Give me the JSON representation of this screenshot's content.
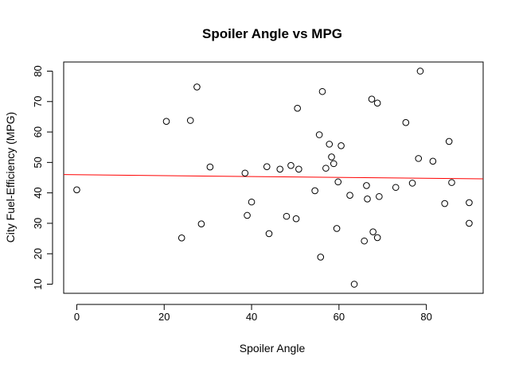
{
  "chart_data": {
    "type": "scatter",
    "title": "Spoiler Angle vs MPG",
    "xlabel": "Spoiler Angle",
    "ylabel": "City Fuel-Efficiency (MPG)",
    "xlim": [
      -3,
      93
    ],
    "ylim": [
      7,
      83
    ],
    "x_ticks": [
      0,
      20,
      40,
      60,
      80
    ],
    "y_ticks": [
      10,
      20,
      30,
      40,
      50,
      60,
      70,
      80
    ],
    "grid": false,
    "legend": "none",
    "point_color": "#000000",
    "line_color": "#ff0000",
    "fit_line": {
      "x": [
        -3,
        93
      ],
      "y": [
        46.0,
        44.6
      ]
    },
    "points": [
      {
        "x": 0,
        "y": 41
      },
      {
        "x": 20.5,
        "y": 63.5
      },
      {
        "x": 24,
        "y": 25.2
      },
      {
        "x": 26,
        "y": 63.8
      },
      {
        "x": 27.5,
        "y": 74.8
      },
      {
        "x": 28.5,
        "y": 29.8
      },
      {
        "x": 30.5,
        "y": 48.5
      },
      {
        "x": 38.5,
        "y": 46.5
      },
      {
        "x": 39,
        "y": 32.6
      },
      {
        "x": 40,
        "y": 37
      },
      {
        "x": 43.5,
        "y": 48.6
      },
      {
        "x": 44,
        "y": 26.6
      },
      {
        "x": 46.5,
        "y": 47.8
      },
      {
        "x": 48,
        "y": 32.3
      },
      {
        "x": 49,
        "y": 49
      },
      {
        "x": 50.2,
        "y": 31.5
      },
      {
        "x": 50.5,
        "y": 67.8
      },
      {
        "x": 50.8,
        "y": 47.8
      },
      {
        "x": 54.5,
        "y": 40.7
      },
      {
        "x": 55.5,
        "y": 59.1
      },
      {
        "x": 55.8,
        "y": 18.9
      },
      {
        "x": 56.2,
        "y": 73.3
      },
      {
        "x": 57,
        "y": 48.1
      },
      {
        "x": 57.8,
        "y": 56
      },
      {
        "x": 58.3,
        "y": 51.8
      },
      {
        "x": 58.8,
        "y": 49.6
      },
      {
        "x": 59.5,
        "y": 28.3
      },
      {
        "x": 59.8,
        "y": 43.6
      },
      {
        "x": 60.5,
        "y": 55.5
      },
      {
        "x": 62.5,
        "y": 39.2
      },
      {
        "x": 63.5,
        "y": 10
      },
      {
        "x": 65.8,
        "y": 24.2
      },
      {
        "x": 66.3,
        "y": 42.4
      },
      {
        "x": 66.5,
        "y": 38
      },
      {
        "x": 67.5,
        "y": 70.8
      },
      {
        "x": 67.8,
        "y": 27.2
      },
      {
        "x": 68.8,
        "y": 69.5
      },
      {
        "x": 68.8,
        "y": 25.3
      },
      {
        "x": 69.2,
        "y": 38.8
      },
      {
        "x": 73,
        "y": 41.8
      },
      {
        "x": 75.3,
        "y": 63.1
      },
      {
        "x": 76.8,
        "y": 43.2
      },
      {
        "x": 78.2,
        "y": 51.3
      },
      {
        "x": 78.6,
        "y": 80
      },
      {
        "x": 81.5,
        "y": 50.4
      },
      {
        "x": 84.2,
        "y": 36.5
      },
      {
        "x": 85.2,
        "y": 56.9
      },
      {
        "x": 85.8,
        "y": 43.4
      },
      {
        "x": 89.8,
        "y": 36.8
      },
      {
        "x": 89.8,
        "y": 30
      }
    ]
  }
}
